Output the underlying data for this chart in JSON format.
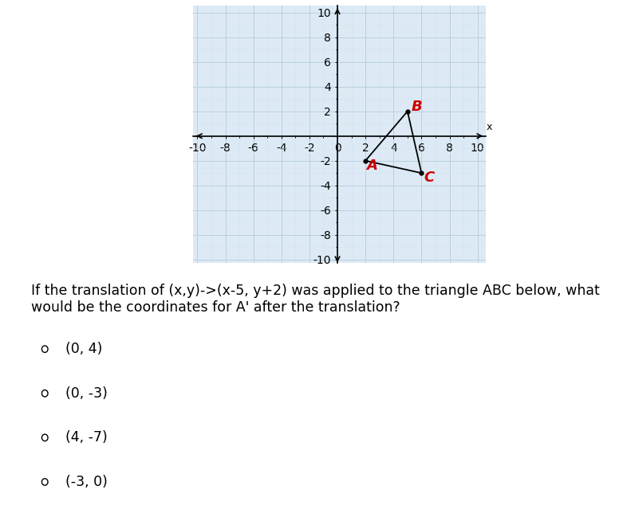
{
  "triangle_vertices": {
    "A": [
      2,
      -2
    ],
    "B": [
      5,
      2
    ],
    "C": [
      6,
      -3
    ]
  },
  "label_color": "#cc0000",
  "triangle_line_color": "black",
  "axis_range": [
    -10,
    10
  ],
  "axis_tick_step": 2,
  "grid_color": "#b8cfe0",
  "minor_grid_color": "#d0e4f0",
  "plot_bg_color": "#ddeaf5",
  "question_text": "If the translation of (x,y)->(x-5, y+2) was applied to the triangle ABC below, what\nwould be the coordinates for A' after the translation?",
  "choices": [
    "(0, 4)",
    "(0, -3)",
    "(4, -7)",
    "(-3, 0)"
  ],
  "question_fontsize": 12.5,
  "choice_fontsize": 12.5,
  "label_fontsize": 13,
  "tick_fontsize": 9
}
